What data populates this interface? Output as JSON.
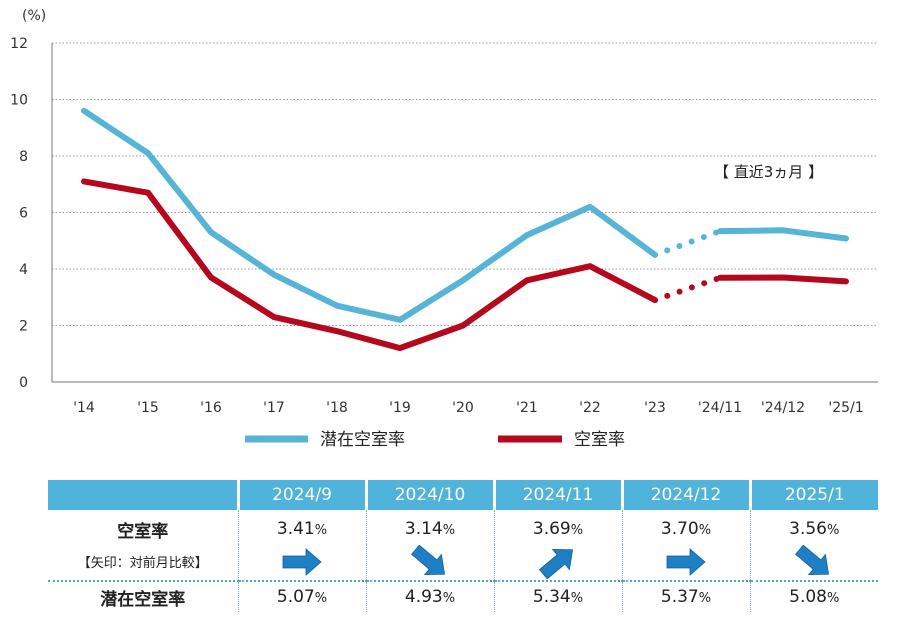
{
  "chart_data": {
    "type": "line",
    "unit_label": "(%)",
    "categories": [
      "'14",
      "'15",
      "'16",
      "'17",
      "'18",
      "'19",
      "'20",
      "'21",
      "'22",
      "'23",
      "'24/11",
      "'24/12",
      "'25/1"
    ],
    "ylim": [
      0,
      12
    ],
    "yticks": [
      0,
      2,
      4,
      6,
      8,
      10,
      12
    ],
    "grid": true,
    "series": [
      {
        "name": "潜在空室率",
        "color": "#56b4d6",
        "values": [
          9.6,
          8.1,
          5.3,
          3.8,
          2.7,
          2.2,
          3.6,
          5.2,
          6.2,
          4.5,
          5.34,
          5.37,
          5.08
        ]
      },
      {
        "name": "空室率",
        "color": "#b5081d",
        "values": [
          7.1,
          6.7,
          3.7,
          2.3,
          1.8,
          1.2,
          2.0,
          3.6,
          4.1,
          2.9,
          3.69,
          3.7,
          3.56
        ]
      }
    ],
    "annotation": "【 直近3ヵ月 】",
    "legend_position": "bottom"
  },
  "table": {
    "months": [
      "2024/9",
      "2024/10",
      "2024/11",
      "2024/12",
      "2025/1"
    ],
    "vacancy_label": "空室率",
    "arrow_note": "【矢印：対前月比較】",
    "potential_label": "潜在空室率",
    "vacancy_values": [
      "3.41",
      "3.14",
      "3.69",
      "3.70",
      "3.56"
    ],
    "potential_values": [
      "5.07",
      "4.93",
      "5.34",
      "5.37",
      "5.08"
    ],
    "pct_suffix": "%",
    "arrows": [
      "arrow-right-icon",
      "arrow-down-right-icon",
      "arrow-up-right-icon",
      "arrow-right-icon",
      "arrow-down-right-icon"
    ],
    "arrow_color": "#1f7fc4"
  }
}
